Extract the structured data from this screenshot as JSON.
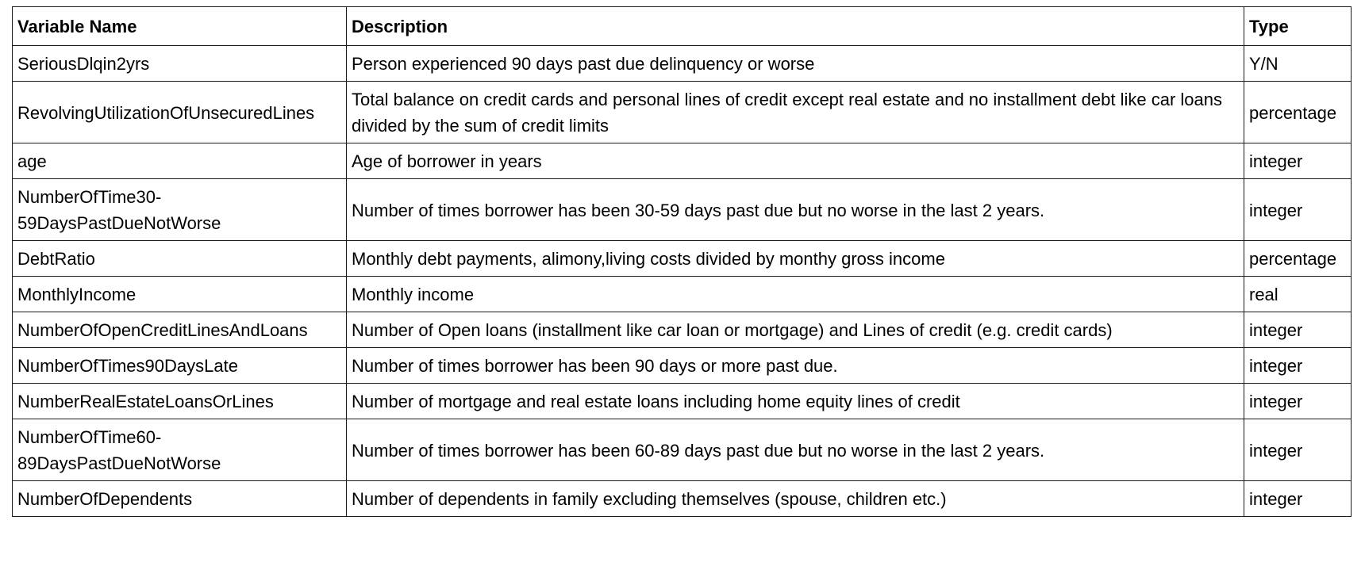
{
  "table": {
    "headers": [
      "Variable Name",
      "Description",
      "Type"
    ],
    "rows": [
      {
        "name": "SeriousDlqin2yrs",
        "description": "Person experienced 90 days past due delinquency or worse",
        "type": "Y/N"
      },
      {
        "name": "RevolvingUtilizationOfUnsecuredLines",
        "description": "Total balance on credit cards and personal lines of credit except real estate and no installment debt like car loans divided by the sum of credit limits",
        "type": "percentage"
      },
      {
        "name": "age",
        "description": "Age of borrower in years",
        "type": "integer"
      },
      {
        "name": "NumberOfTime30-59DaysPastDueNotWorse",
        "description": "Number of times borrower has been 30-59 days past due but no worse in the last 2 years.",
        "type": "integer"
      },
      {
        "name": "DebtRatio",
        "description": "Monthly debt payments, alimony,living costs divided by monthy gross income",
        "type": "percentage"
      },
      {
        "name": "MonthlyIncome",
        "description": "Monthly income",
        "type": "real"
      },
      {
        "name": "NumberOfOpenCreditLinesAndLoans",
        "description": "Number of Open loans (installment like car loan or mortgage) and Lines of credit (e.g. credit cards)",
        "type": "integer"
      },
      {
        "name": "NumberOfTimes90DaysLate",
        "description": "Number of times borrower has been 90 days or more past due.",
        "type": "integer"
      },
      {
        "name": "NumberRealEstateLoansOrLines",
        "description": "Number of mortgage and real estate loans including home equity lines of credit",
        "type": "integer"
      },
      {
        "name": "NumberOfTime60-89DaysPastDueNotWorse",
        "description": "Number of times borrower has been 60-89 days past due but no worse in the last 2 years.",
        "type": "integer"
      },
      {
        "name": "NumberOfDependents",
        "description": "Number of dependents in family excluding themselves (spouse, children etc.)",
        "type": "integer"
      }
    ]
  }
}
